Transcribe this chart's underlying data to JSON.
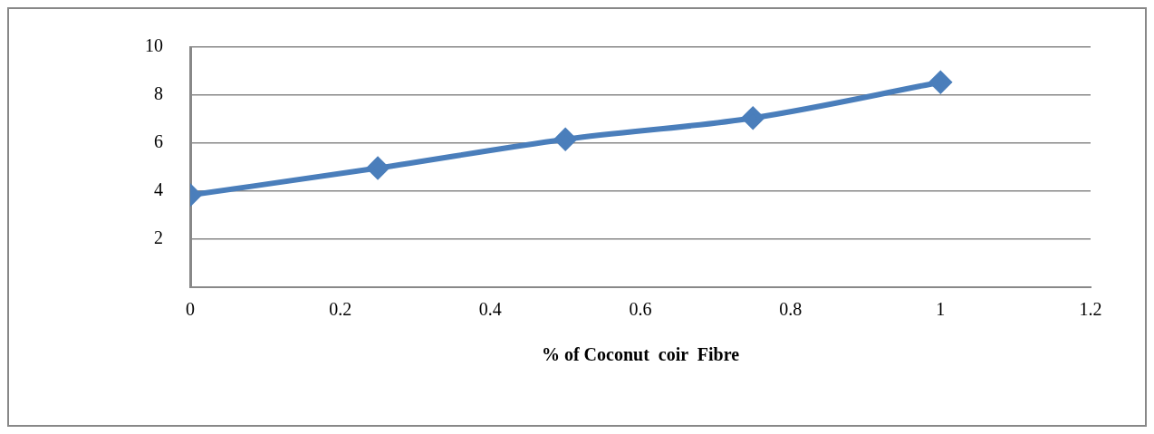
{
  "chart_data": {
    "type": "line",
    "xlabel": "% of Coconut  coir  Fibre",
    "x": [
      0,
      0.25,
      0.5,
      0.75,
      1
    ],
    "series": [
      {
        "color": "#4a7ebb",
        "values": [
          3.84,
          4.96,
          6.16,
          7.05,
          8.54
        ]
      }
    ],
    "xlim": [
      0,
      1.2
    ],
    "xticks": [
      0,
      0.2,
      0.4,
      0.6,
      0.8,
      1,
      1.2
    ],
    "ylim": [
      0,
      10
    ],
    "yticks": [
      2,
      4,
      6,
      8,
      10
    ],
    "grid": "y",
    "legend": false,
    "marker": "diamond",
    "line_style": "solid"
  }
}
